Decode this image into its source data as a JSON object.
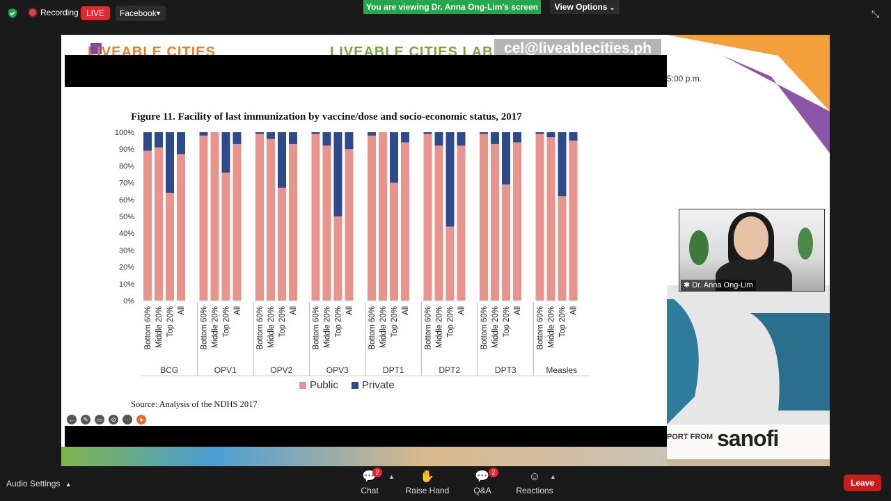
{
  "topbar": {
    "recording": "Recording",
    "live": "LIVE",
    "platform": "Facebook",
    "viewing_banner": "You are viewing Dr. Anna Ong-Lim's screen",
    "view_options": "View Options"
  },
  "slide": {
    "header_left": "LIVEABLE CITIES",
    "header_center": "LIVEABLE CITIES LAB",
    "watermark": "cel@liveablecities.ph",
    "time_text": "5:00 p.m.",
    "sponsor_text": "PORT FROM",
    "sponsor_logo": "sanofi",
    "figure_title": "Figure 11. Facility of last immunization by vaccine/dose and socio-economic status, 2017",
    "source": "Source: Analysis of the NDHS 2017"
  },
  "video": {
    "participant_name": "Dr. Anna Ong-Lim"
  },
  "bottombar": {
    "audio_settings": "Audio Settings",
    "chat": "Chat",
    "chat_badge": "2",
    "raise_hand": "Raise Hand",
    "qa": "Q&A",
    "qa_badge": "2",
    "reactions": "Reactions",
    "leave": "Leave"
  },
  "colors": {
    "public": "#e8948c",
    "private": "#2e4a8c",
    "live_red": "#e5262b",
    "banner_green": "#24a84a"
  },
  "chart_data": {
    "type": "bar",
    "stacked": true,
    "percent": true,
    "ylim": [
      0,
      100
    ],
    "yticks": [
      "0%",
      "10%",
      "20%",
      "30%",
      "40%",
      "50%",
      "60%",
      "70%",
      "80%",
      "90%",
      "100%"
    ],
    "groups": [
      "BCG",
      "OPV1",
      "OPV2",
      "OPV3",
      "DPT1",
      "DPT2",
      "DPT3",
      "Measles"
    ],
    "subcategories": [
      "Bottom 60%",
      "Middle 20%",
      "Top 20%",
      "All"
    ],
    "legend": [
      "Public",
      "Private"
    ],
    "legend_position": "bottom",
    "series": [
      {
        "name": "Public",
        "values": [
          [
            89,
            91,
            64,
            87
          ],
          [
            98,
            100,
            76,
            93
          ],
          [
            99,
            96,
            67,
            93
          ],
          [
            99,
            92,
            50,
            90
          ],
          [
            98,
            100,
            70,
            94
          ],
          [
            99,
            92,
            44,
            92
          ],
          [
            99,
            93,
            69,
            94
          ],
          [
            99,
            97,
            62,
            95
          ]
        ]
      },
      {
        "name": "Private",
        "values": [
          [
            11,
            9,
            36,
            13
          ],
          [
            2,
            0,
            24,
            7
          ],
          [
            1,
            4,
            33,
            7
          ],
          [
            1,
            8,
            50,
            10
          ],
          [
            2,
            0,
            30,
            6
          ],
          [
            1,
            8,
            56,
            8
          ],
          [
            1,
            7,
            31,
            6
          ],
          [
            1,
            3,
            38,
            5
          ]
        ]
      }
    ]
  }
}
